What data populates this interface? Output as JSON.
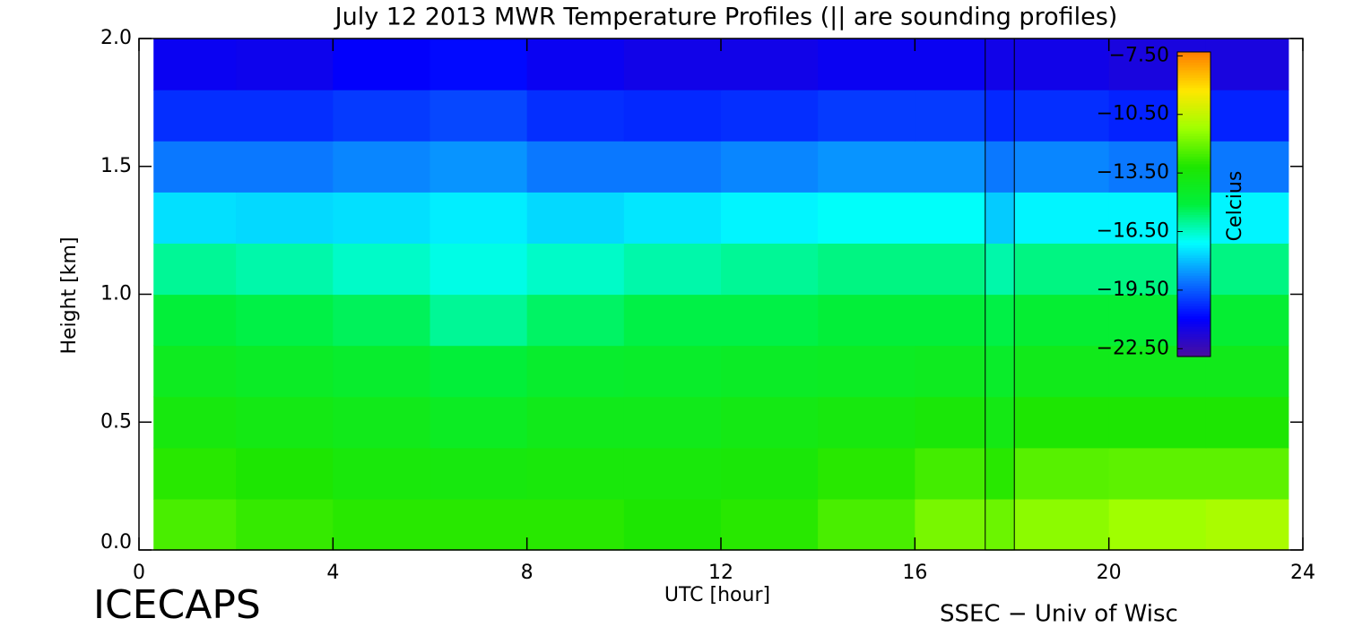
{
  "chart_data": {
    "type": "heatmap",
    "title": "July 12 2013 MWR Temperature Profiles (|| are sounding profiles)",
    "x_label": "UTC [hour]",
    "y_label": "Height [km]",
    "xlim": [
      0,
      24
    ],
    "xticks": [
      0,
      4,
      8,
      12,
      16,
      20,
      24
    ],
    "ylim": [
      0,
      2
    ],
    "yticks": [
      {
        "value": 0,
        "label": "0.0"
      },
      {
        "value": 0.5,
        "label": "0.5"
      },
      {
        "value": 1,
        "label": "1.0"
      },
      {
        "value": 1.5,
        "label": "1.5"
      },
      {
        "value": 2,
        "label": "2.0"
      }
    ],
    "xbins": [
      0.3,
      2,
      4,
      6,
      8,
      10,
      12,
      14,
      16,
      18,
      20,
      22,
      23.7
    ],
    "ybins": [
      0,
      0.2,
      0.4,
      0.6,
      0.8,
      1.0,
      1.2,
      1.4,
      1.6,
      1.8,
      2.0
    ],
    "z": [
      [
        -12.5,
        -12.8,
        -13,
        -13,
        -13,
        -13.2,
        -13,
        -12.5,
        -11.8,
        -11.5,
        -11.2,
        -11.0
      ],
      [
        -13,
        -13.2,
        -13.5,
        -13.6,
        -13.5,
        -13.5,
        -13.4,
        -13,
        -12.6,
        -12.3,
        -12.2,
        -12.2
      ],
      [
        -13.6,
        -13.8,
        -14,
        -14.3,
        -14,
        -14,
        -13.8,
        -13.6,
        -13.4,
        -13.2,
        -13.2,
        -13.2
      ],
      [
        -14.2,
        -14.4,
        -14.6,
        -15,
        -14.6,
        -14.5,
        -14.4,
        -14.3,
        -14.2,
        -14,
        -14,
        -14
      ],
      [
        -15,
        -15.2,
        -15.4,
        -16,
        -15.5,
        -15.2,
        -15.2,
        -15,
        -15,
        -14.8,
        -14.8,
        -14.8
      ],
      [
        -16,
        -16.2,
        -16.5,
        -16.8,
        -16.5,
        -16.2,
        -16,
        -15.8,
        -15.8,
        -15.8,
        -15.8,
        -15.8
      ],
      [
        -17.5,
        -17.6,
        -17.5,
        -17.3,
        -17.6,
        -17.4,
        -17.2,
        -17,
        -17,
        -17.2,
        -17.2,
        -17.2
      ],
      [
        -19,
        -19,
        -18.8,
        -18.6,
        -19,
        -19,
        -18.8,
        -18.6,
        -18.6,
        -18.8,
        -19,
        -19
      ],
      [
        -20.2,
        -20.2,
        -20,
        -19.8,
        -20.2,
        -20.3,
        -20.2,
        -20,
        -20,
        -20.2,
        -20.4,
        -20.4
      ],
      [
        -21.2,
        -21.3,
        -21,
        -20.8,
        -21.2,
        -21.4,
        -21.4,
        -21.2,
        -21.2,
        -21.4,
        -21.6,
        -21.6
      ]
    ],
    "sounding": {
      "xbins": [
        17.45,
        18.05
      ],
      "z": [
        -12,
        -13,
        -13.8,
        -14.5,
        -15.2,
        -16.2,
        -17.8,
        -19,
        -20.3,
        -21.4
      ]
    },
    "colorbar": {
      "label": "Celcius",
      "zlim": [
        -22.9,
        -7.3
      ],
      "colors": [
        "#4b0f9c",
        "#0000ff",
        "#0a78ff",
        "#00ffff",
        "#00f03c",
        "#1ee600",
        "#a0ff00",
        "#ffe600",
        "#ff7d00"
      ],
      "ticks": [
        {
          "value": -7.5,
          "label": "−7.50"
        },
        {
          "value": -10.5,
          "label": "−10.50"
        },
        {
          "value": -13.5,
          "label": "−13.50"
        },
        {
          "value": -16.5,
          "label": "−16.50"
        },
        {
          "value": -19.5,
          "label": "−19.50"
        },
        {
          "value": -22.5,
          "label": "−22.50"
        }
      ]
    }
  },
  "footer": {
    "left": "ICECAPS",
    "right": "SSEC − Univ of Wisc"
  }
}
